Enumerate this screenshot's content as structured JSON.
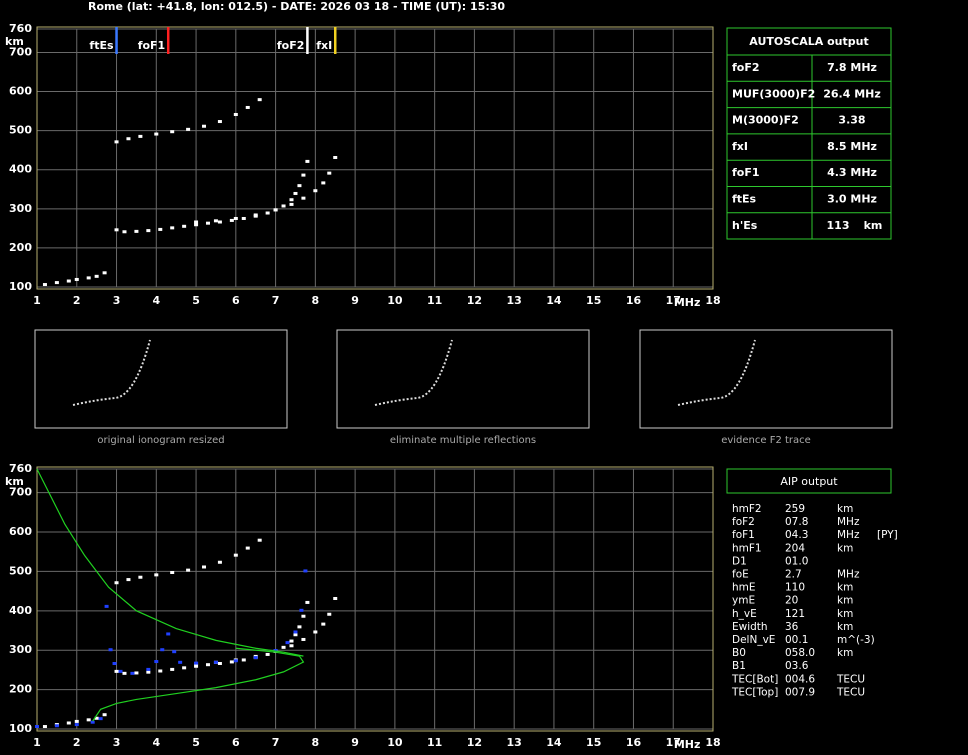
{
  "header": {
    "title": "Rome (lat: +41.8, lon: 012.5) - DATE: 2026 03 18 - TIME (UT): 15:30"
  },
  "chart_data": [
    {
      "type": "scatter",
      "x_label": "MHz",
      "y_label": "km",
      "xlim": [
        1,
        18
      ],
      "ylim": [
        100,
        760
      ],
      "xticks": [
        1,
        2,
        3,
        4,
        5,
        6,
        7,
        8,
        9,
        10,
        11,
        12,
        13,
        14,
        15,
        16,
        17,
        18
      ],
      "yticks": [
        100,
        200,
        300,
        400,
        500,
        600,
        700,
        760
      ],
      "grid": true,
      "markers": [
        {
          "name": "ftEs",
          "value": 3.0,
          "color": "#3a78ff"
        },
        {
          "name": "foF1",
          "value": 4.3,
          "color": "#ff2020"
        },
        {
          "name": "foF2",
          "value": 7.8,
          "color": "#ffffff"
        },
        {
          "name": "fxI",
          "value": 8.5,
          "color": "#f0d020"
        }
      ],
      "series": [
        {
          "color": "#ffffff",
          "style": "dots",
          "x": [
            1.2,
            1.5,
            1.8,
            2.0,
            2.3,
            2.5,
            2.7
          ],
          "values": [
            105,
            110,
            114,
            118,
            122,
            126,
            135
          ]
        },
        {
          "color": "#ffffff",
          "style": "dots",
          "x": [
            3.0,
            3.2,
            3.5,
            3.8,
            4.1,
            4.4,
            4.7,
            5.0,
            5.3,
            5.6,
            5.9,
            6.2,
            6.5,
            6.8,
            7.0,
            7.2,
            7.4,
            7.5,
            7.6,
            7.7,
            7.8
          ],
          "values": [
            245,
            240,
            241,
            243,
            246,
            250,
            254,
            258,
            262,
            265,
            269,
            274,
            280,
            288,
            296,
            306,
            322,
            338,
            358,
            385,
            420
          ]
        },
        {
          "color": "#ffffff",
          "style": "dots",
          "x": [
            5.0,
            5.5,
            6.0,
            6.5,
            7.0,
            7.4,
            7.7,
            8.0,
            8.2,
            8.35,
            8.5
          ],
          "values": [
            265,
            268,
            274,
            283,
            296,
            310,
            326,
            345,
            365,
            390,
            430
          ]
        },
        {
          "color": "#ffffff",
          "style": "dots",
          "x": [
            3.0,
            3.3,
            3.6,
            4.0,
            4.4,
            4.8,
            5.2,
            5.6,
            6.0,
            6.3,
            6.6
          ],
          "values": [
            470,
            478,
            484,
            490,
            496,
            502,
            510,
            522,
            540,
            558,
            578
          ]
        }
      ]
    },
    {
      "type": "scatter",
      "x_label": "MHz",
      "y_label": "km",
      "xlim": [
        1,
        18
      ],
      "ylim": [
        100,
        760
      ],
      "xticks": [
        1,
        2,
        3,
        4,
        5,
        6,
        7,
        8,
        9,
        10,
        11,
        12,
        13,
        14,
        15,
        16,
        17,
        18
      ],
      "yticks": [
        100,
        200,
        300,
        400,
        500,
        600,
        700,
        760
      ],
      "grid": true,
      "series": [
        {
          "color": "#ffffff",
          "style": "dots",
          "x": [
            1.2,
            1.5,
            1.8,
            2.0,
            2.3,
            2.5,
            2.7
          ],
          "values": [
            105,
            110,
            114,
            118,
            122,
            126,
            135
          ]
        },
        {
          "color": "#ffffff",
          "style": "dots",
          "x": [
            3.0,
            3.2,
            3.5,
            3.8,
            4.1,
            4.4,
            4.7,
            5.0,
            5.3,
            5.6,
            5.9,
            6.2,
            6.5,
            6.8,
            7.0,
            7.2,
            7.4,
            7.5,
            7.6,
            7.7,
            7.8
          ],
          "values": [
            245,
            240,
            241,
            243,
            246,
            250,
            254,
            258,
            262,
            265,
            269,
            274,
            280,
            288,
            296,
            306,
            322,
            338,
            358,
            385,
            420
          ]
        },
        {
          "color": "#ffffff",
          "style": "dots",
          "x": [
            5.0,
            5.5,
            6.0,
            6.5,
            7.0,
            7.4,
            7.7,
            8.0,
            8.2,
            8.35,
            8.5
          ],
          "values": [
            265,
            268,
            274,
            283,
            296,
            310,
            326,
            345,
            365,
            390,
            430
          ]
        },
        {
          "color": "#ffffff",
          "style": "dots",
          "x": [
            3.0,
            3.3,
            3.6,
            4.0,
            4.4,
            4.8,
            5.2,
            5.6,
            6.0,
            6.3,
            6.6
          ],
          "values": [
            470,
            478,
            484,
            490,
            496,
            502,
            510,
            522,
            540,
            558,
            578
          ]
        },
        {
          "color": "#2040ff",
          "style": "dots",
          "x": [
            1.0,
            1.5,
            2.0,
            2.4,
            2.6,
            2.75,
            2.85,
            2.95,
            3.1,
            3.4,
            3.8,
            4.0,
            4.15,
            4.3,
            4.45,
            4.6,
            5.0,
            5.5,
            6.0,
            6.5,
            7.0,
            7.3,
            7.5,
            7.65,
            7.75
          ],
          "values": [
            105,
            107,
            110,
            116,
            125,
            410,
            300,
            265,
            245,
            240,
            250,
            270,
            300,
            340,
            295,
            268,
            266,
            268,
            272,
            280,
            298,
            318,
            345,
            400,
            500
          ]
        },
        {
          "color": "#20d020",
          "style": "line",
          "x": [
            1.0,
            1.3,
            1.7,
            2.2,
            2.8,
            3.5,
            4.5,
            5.5,
            6.5,
            7.2,
            7.7
          ],
          "values": [
            760,
            700,
            620,
            540,
            460,
            400,
            355,
            325,
            305,
            295,
            285
          ]
        },
        {
          "color": "#20d020",
          "style": "line",
          "x": [
            2.4,
            2.6,
            3.0,
            3.5,
            4.5,
            5.5,
            6.5,
            7.2,
            7.7,
            7.6,
            7.0,
            6.5,
            6.0
          ],
          "values": [
            120,
            150,
            165,
            175,
            190,
            205,
            225,
            245,
            270,
            285,
            295,
            300,
            305
          ]
        }
      ]
    }
  ],
  "thumbnails": [
    {
      "caption": "original ionogram resized"
    },
    {
      "caption": "eliminate multiple reflections"
    },
    {
      "caption": "evidence F2 trace"
    }
  ],
  "autoscala": {
    "title": "AUTOSCALA output",
    "rows": [
      [
        "foF2",
        "7.8 MHz"
      ],
      [
        "MUF(3000)F2",
        "26.4 MHz"
      ],
      [
        "M(3000)F2",
        "3.38"
      ],
      [
        "fxI",
        "8.5 MHz"
      ],
      [
        "foF1",
        "4.3 MHz"
      ],
      [
        "ftEs",
        "3.0 MHz"
      ],
      [
        "h'Es",
        "113",
        "km"
      ]
    ]
  },
  "aip": {
    "title": "AIP output",
    "rows": [
      [
        "hmF2",
        "259",
        "km"
      ],
      [
        "foF2",
        "07.8",
        "MHz"
      ],
      [
        "foF1",
        "04.3",
        "MHz",
        "[PY]"
      ],
      [
        "hmF1",
        "204",
        "km"
      ],
      [
        "D1",
        "01.0"
      ],
      [
        "foE",
        "2.7",
        "MHz"
      ],
      [
        "hmE",
        "110",
        "km"
      ],
      [
        "ymE",
        "20",
        "km"
      ],
      [
        "h_vE",
        "121",
        "km"
      ],
      [
        "Ewidth",
        "36",
        "km"
      ],
      [
        "DelN_vE",
        "00.1",
        "m^(-3)"
      ],
      [
        "B0",
        "058.0",
        "km"
      ],
      [
        "B1",
        "03.6"
      ],
      [
        "TEC[Bot]",
        "004.6",
        "TECU"
      ],
      [
        "TEC[Top]",
        "007.9",
        "TECU"
      ]
    ]
  }
}
